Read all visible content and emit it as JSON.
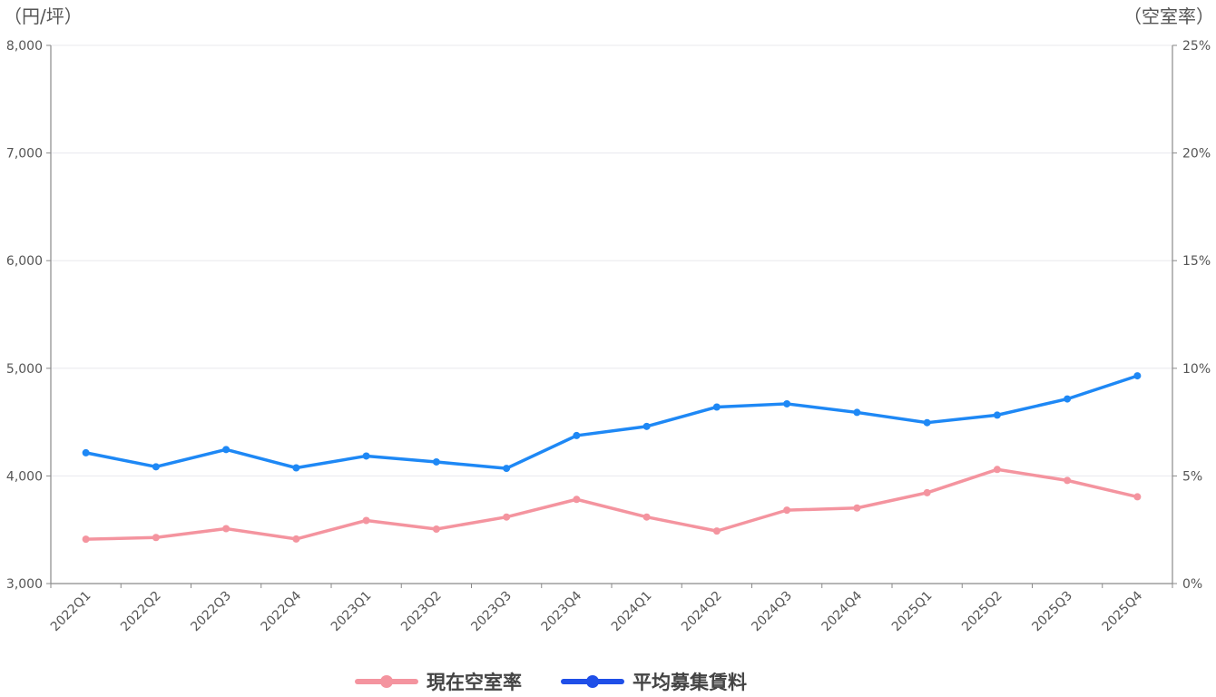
{
  "chart_data": {
    "type": "line",
    "left_axis": {
      "unit_label": "（円/坪）",
      "min": 3000,
      "max": 8000,
      "ticks": [
        3000,
        4000,
        5000,
        6000,
        7000,
        8000
      ],
      "tick_labels": [
        "3,000",
        "4,000",
        "5,000",
        "6,000",
        "7,000",
        "8,000"
      ]
    },
    "right_axis": {
      "unit_label": "（空室率）",
      "min": 0,
      "max": 25,
      "ticks": [
        0,
        5,
        10,
        15,
        20,
        25
      ],
      "tick_labels": [
        "0%",
        "5%",
        "10%",
        "15%",
        "20%",
        "25%"
      ]
    },
    "categories": [
      "2022Q1",
      "2022Q2",
      "2022Q3",
      "2022Q4",
      "2023Q1",
      "2023Q2",
      "2023Q3",
      "2023Q4",
      "2024Q1",
      "2024Q2",
      "2024Q3",
      "2024Q4",
      "2025Q1",
      "2025Q2",
      "2025Q3",
      "2025Q4"
    ],
    "series": [
      {
        "name": "現在空室率",
        "axis": "right",
        "color": "#f4949f",
        "values": [
          2.06,
          2.14,
          2.55,
          2.07,
          2.93,
          2.53,
          3.09,
          3.91,
          3.09,
          2.44,
          3.41,
          3.51,
          4.22,
          5.3,
          4.79,
          4.03
        ]
      },
      {
        "name": "平均募集賃料",
        "axis": "left",
        "color": "#1e88f5",
        "values": [
          4215,
          4085,
          4245,
          4075,
          4185,
          4130,
          4070,
          4375,
          4460,
          4640,
          4670,
          4590,
          4495,
          4565,
          4715,
          4930
        ]
      }
    ],
    "grid": true,
    "legend_position": "bottom-center"
  }
}
